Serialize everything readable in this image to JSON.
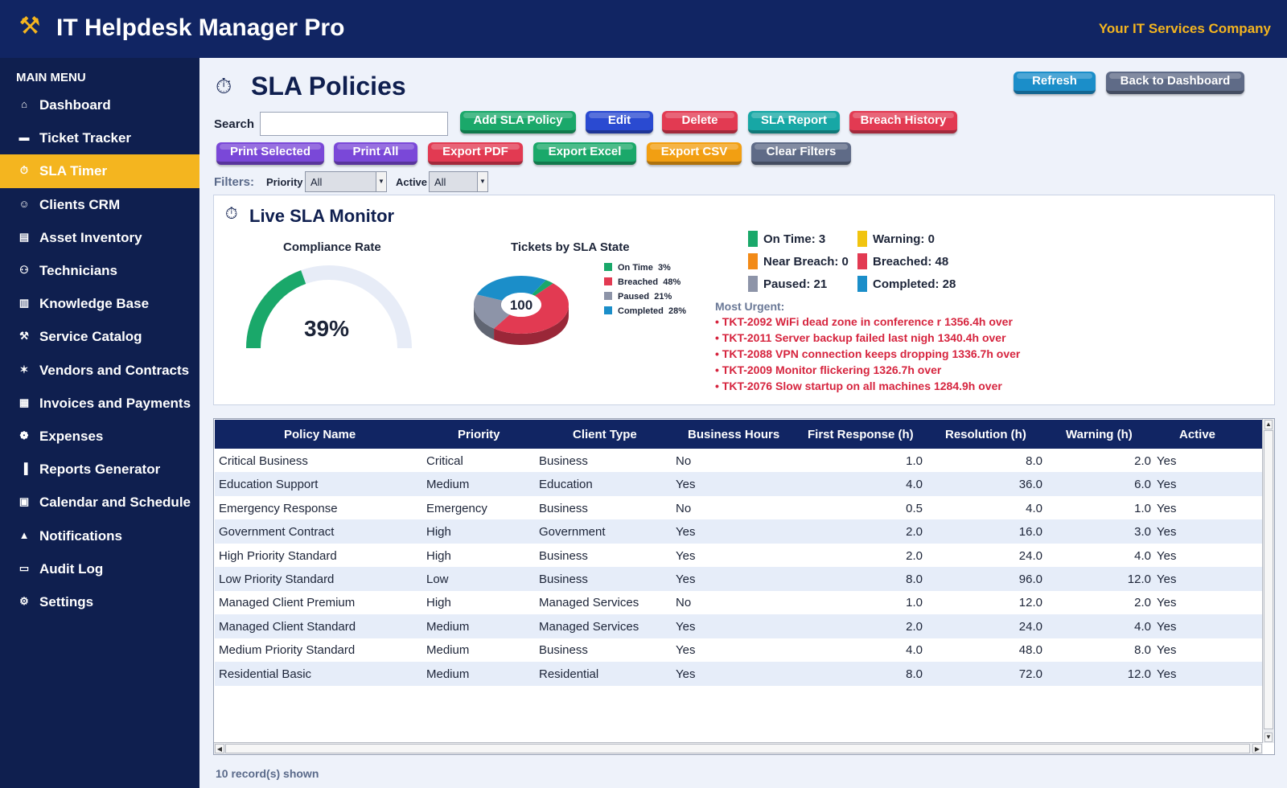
{
  "header": {
    "title": "IT Helpdesk Manager Pro",
    "company": "Your IT Services Company"
  },
  "sidebar": {
    "heading": "MAIN MENU",
    "items": [
      {
        "label": "Dashboard",
        "icon": "home-icon"
      },
      {
        "label": "Ticket Tracker",
        "icon": "ticket-icon"
      },
      {
        "label": "SLA Timer",
        "icon": "timer-icon",
        "active": true
      },
      {
        "label": "Clients CRM",
        "icon": "users-icon"
      },
      {
        "label": "Asset Inventory",
        "icon": "server-icon"
      },
      {
        "label": "Technicians",
        "icon": "technician-icon"
      },
      {
        "label": "Knowledge Base",
        "icon": "book-icon"
      },
      {
        "label": "Service Catalog",
        "icon": "tools-icon"
      },
      {
        "label": "Vendors and Contracts",
        "icon": "handshake-icon"
      },
      {
        "label": "Invoices and Payments",
        "icon": "invoice-icon"
      },
      {
        "label": "Expenses",
        "icon": "money-icon"
      },
      {
        "label": "Reports Generator",
        "icon": "bar-chart-icon"
      },
      {
        "label": "Calendar and Schedule",
        "icon": "calendar-icon"
      },
      {
        "label": "Notifications",
        "icon": "bell-icon"
      },
      {
        "label": "Audit Log",
        "icon": "log-icon"
      },
      {
        "label": "Settings",
        "icon": "gear-icon"
      }
    ]
  },
  "page": {
    "title": "SLA Policies",
    "refresh_label": "Refresh",
    "back_label": "Back to Dashboard",
    "search_label": "Search",
    "search_value": ""
  },
  "toolbar": {
    "row1": [
      {
        "label": "Add SLA Policy",
        "color": "#1aa86a"
      },
      {
        "label": "Edit",
        "color": "#2a4ad1"
      },
      {
        "label": "Delete",
        "color": "#e23a52"
      },
      {
        "label": "SLA Report",
        "color": "#17a7a5"
      },
      {
        "label": "Breach History",
        "color": "#e23a52"
      }
    ],
    "row2": [
      {
        "label": "Print Selected",
        "color": "#7a48d8"
      },
      {
        "label": "Print All",
        "color": "#7a48d8"
      },
      {
        "label": "Export PDF",
        "color": "#e23a52"
      },
      {
        "label": "Export Excel",
        "color": "#1aa86a"
      },
      {
        "label": "Export CSV",
        "color": "#f29f12"
      },
      {
        "label": "Clear Filters",
        "color": "#5f6b87"
      }
    ]
  },
  "filters": {
    "label": "Filters:",
    "priority_label": "Priority",
    "priority_value": "All",
    "active_label": "Active",
    "active_value": "All"
  },
  "monitor": {
    "title": "Live SLA Monitor",
    "compliance_title": "Compliance Rate",
    "compliance_value": "39%",
    "compliance_fraction": 0.39,
    "pie_title": "Tickets by SLA State",
    "pie_total": "100",
    "stats": [
      {
        "label": "On Time: 3",
        "color": "#1aa86a"
      },
      {
        "label": "Warning: 0",
        "color": "#f1c40f"
      },
      {
        "label": "Near Breach: 0",
        "color": "#f28a17"
      },
      {
        "label": "Breached: 48",
        "color": "#e23a52"
      },
      {
        "label": "Paused: 21",
        "color": "#8d94a8"
      },
      {
        "label": "Completed: 28",
        "color": "#1b8ec9"
      }
    ],
    "urgent_heading": "Most Urgent:",
    "urgent": [
      {
        "id": "• TKT-2092",
        "subject": "WiFi dead zone in conference r",
        "over": "1356.4h over"
      },
      {
        "id": "• TKT-2011",
        "subject": "Server backup failed last nigh",
        "over": "1340.4h over"
      },
      {
        "id": "• TKT-2088",
        "subject": "VPN connection keeps dropping",
        "over": "1336.7h over"
      },
      {
        "id": "• TKT-2009",
        "subject": "Monitor flickering",
        "over": "1326.7h over"
      },
      {
        "id": "• TKT-2076",
        "subject": "Slow startup on all machines",
        "over": "1284.9h over"
      }
    ]
  },
  "chart_data": {
    "type": "pie",
    "title": "Tickets by SLA State",
    "categories": [
      "On Time",
      "Breached",
      "Paused",
      "Completed"
    ],
    "values": [
      3,
      48,
      21,
      28
    ],
    "labels": [
      "3%",
      "48%",
      "21%",
      "28%"
    ],
    "colors": [
      "#1aa86a",
      "#e23a52",
      "#8d94a8",
      "#1b8ec9"
    ]
  },
  "table": {
    "headers": [
      "Policy Name",
      "Priority",
      "Client Type",
      "Business Hours",
      "First Response (h)",
      "Resolution (h)",
      "Warning (h)",
      "Active"
    ],
    "rows": [
      [
        "Critical Business",
        "Critical",
        "Business",
        "No",
        "1.0",
        "8.0",
        "2.0",
        "Yes"
      ],
      [
        "Education Support",
        "Medium",
        "Education",
        "Yes",
        "4.0",
        "36.0",
        "6.0",
        "Yes"
      ],
      [
        "Emergency Response",
        "Emergency",
        "Business",
        "No",
        "0.5",
        "4.0",
        "1.0",
        "Yes"
      ],
      [
        "Government Contract",
        "High",
        "Government",
        "Yes",
        "2.0",
        "16.0",
        "3.0",
        "Yes"
      ],
      [
        "High Priority Standard",
        "High",
        "Business",
        "Yes",
        "2.0",
        "24.0",
        "4.0",
        "Yes"
      ],
      [
        "Low Priority Standard",
        "Low",
        "Business",
        "Yes",
        "8.0",
        "96.0",
        "12.0",
        "Yes"
      ],
      [
        "Managed Client Premium",
        "High",
        "Managed Services",
        "No",
        "1.0",
        "12.0",
        "2.0",
        "Yes"
      ],
      [
        "Managed Client Standard",
        "Medium",
        "Managed Services",
        "Yes",
        "2.0",
        "24.0",
        "4.0",
        "Yes"
      ],
      [
        "Medium Priority Standard",
        "Medium",
        "Business",
        "Yes",
        "4.0",
        "48.0",
        "8.0",
        "Yes"
      ],
      [
        "Residential Basic",
        "Medium",
        "Residential",
        "Yes",
        "8.0",
        "72.0",
        "12.0",
        "Yes"
      ]
    ],
    "records_text": "10 record(s) shown"
  }
}
